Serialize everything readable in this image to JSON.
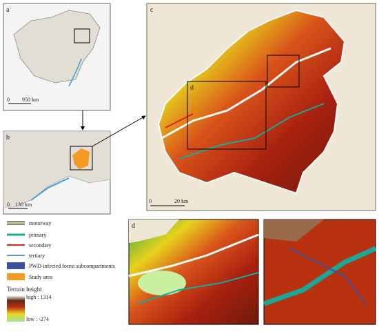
{
  "panels": [
    {
      "label": "a",
      "scale_zero": "0",
      "scale_length": "950 km"
    },
    {
      "label": "b",
      "scale_zero": "0",
      "scale_length": "130 km"
    },
    {
      "label": "c",
      "scale_zero": "0",
      "scale_length": "20 km"
    },
    {
      "label": "d"
    }
  ],
  "legend": {
    "items": [
      "motorway",
      "primary",
      "secondary",
      "tertiary",
      "PWD-infected forest subcompartments",
      "Study area"
    ],
    "terrain_title": "Terrain height",
    "terrain_high": "high : 1314",
    "terrain_low": "low : -274"
  }
}
